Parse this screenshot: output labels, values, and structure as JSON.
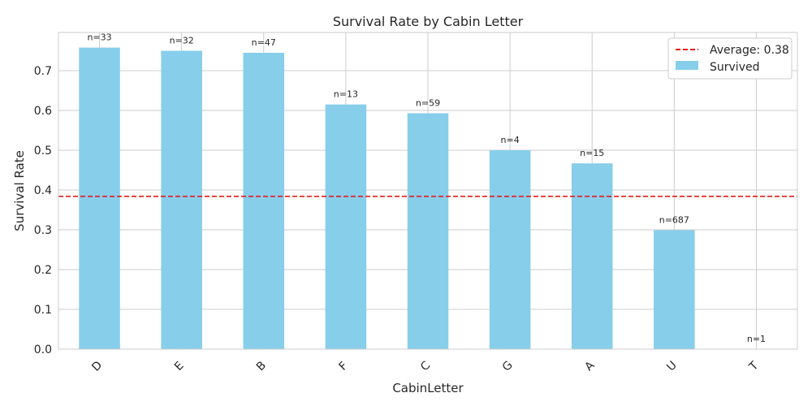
{
  "chart_data": {
    "type": "bar",
    "title": "Survival Rate by Cabin Letter",
    "xlabel": "CabinLetter",
    "ylabel": "Survival Rate",
    "categories": [
      "D",
      "E",
      "B",
      "F",
      "C",
      "G",
      "A",
      "U",
      "T"
    ],
    "series": [
      {
        "name": "Survived",
        "values": [
          0.758,
          0.75,
          0.745,
          0.615,
          0.593,
          0.5,
          0.467,
          0.299,
          0.0
        ],
        "color": "#87CEEB"
      }
    ],
    "counts": [
      "n=33",
      "n=32",
      "n=47",
      "n=13",
      "n=59",
      "n=4",
      "n=15",
      "n=687",
      "n=1"
    ],
    "yticks": [
      "0.0",
      "0.1",
      "0.2",
      "0.3",
      "0.4",
      "0.5",
      "0.6",
      "0.7"
    ],
    "ylim": [
      0,
      0.796
    ],
    "average": {
      "value": 0.384,
      "label": "Average: 0.38",
      "color": "#E41A1C"
    },
    "grid": true,
    "legend_position": "top-right"
  }
}
